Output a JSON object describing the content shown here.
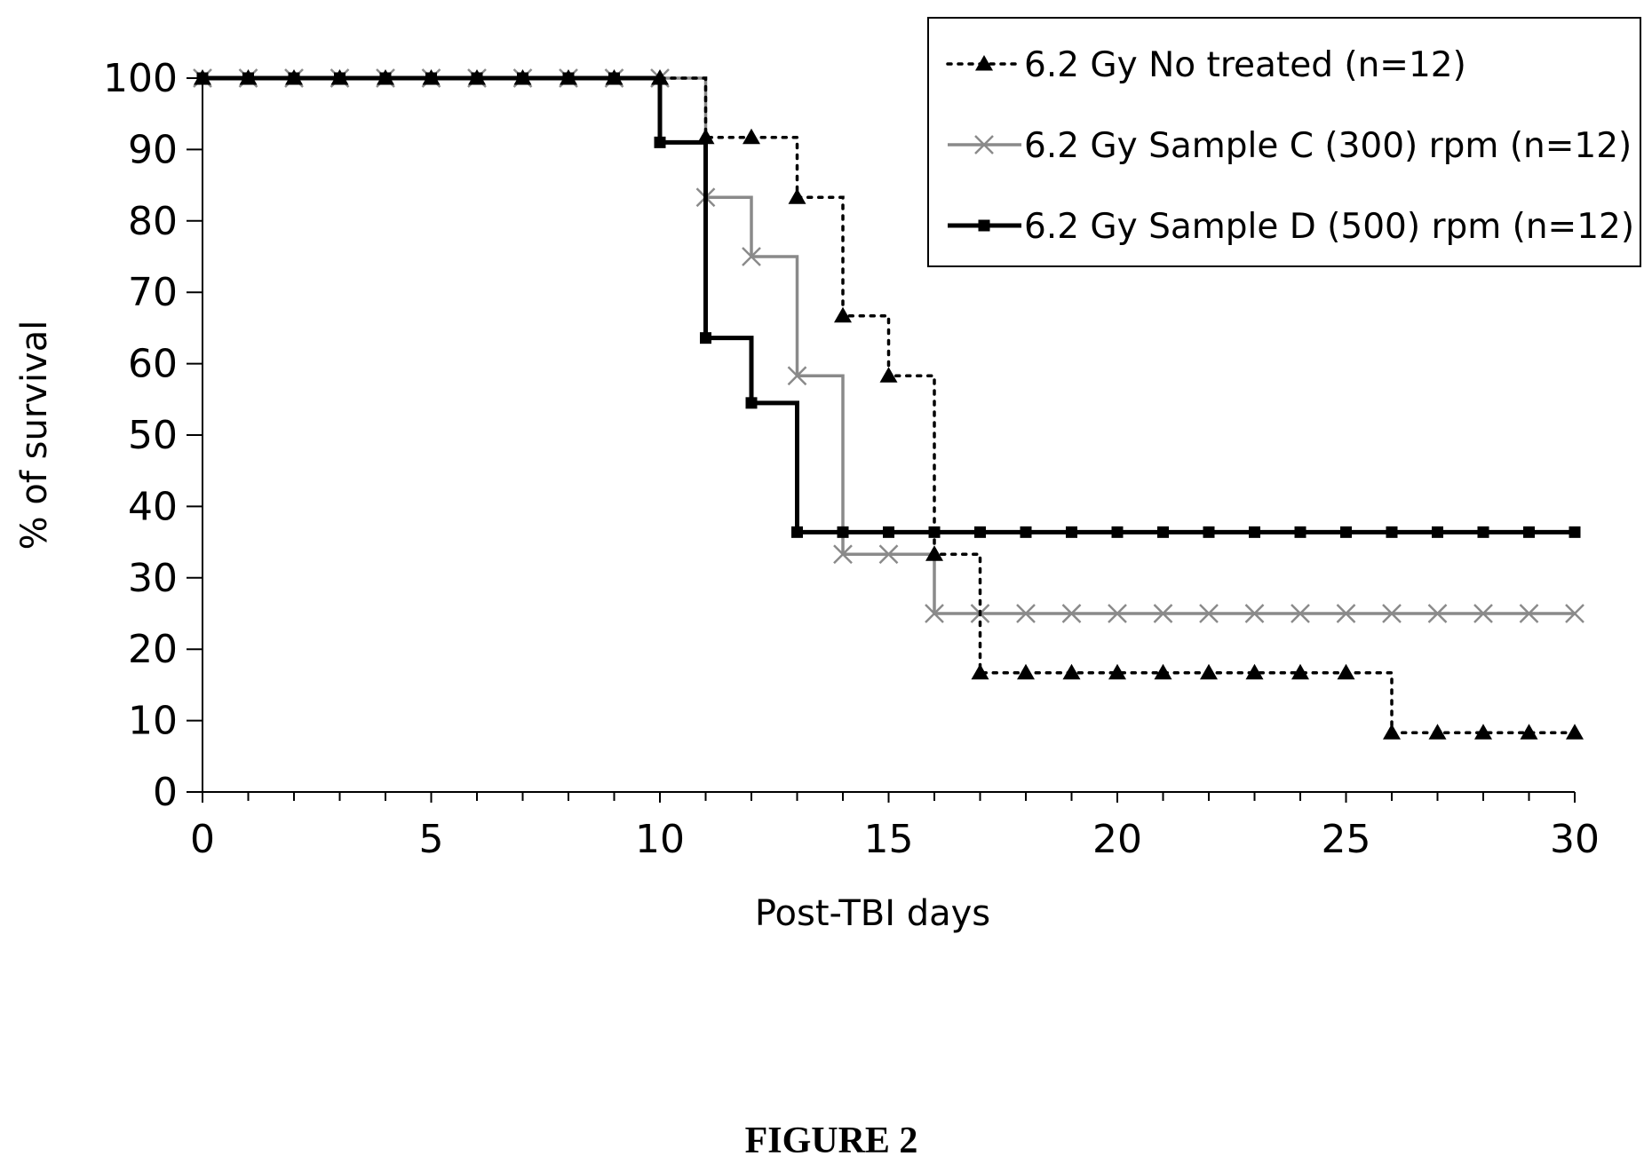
{
  "chart_data": {
    "type": "line",
    "step": true,
    "xlabel": "Post-TBI days",
    "ylabel": "% of survival",
    "xlim": [
      0,
      30
    ],
    "ylim": [
      0,
      100
    ],
    "xticks": [
      0,
      5,
      10,
      15,
      20,
      25,
      30
    ],
    "yticks": [
      0,
      10,
      20,
      30,
      40,
      50,
      60,
      70,
      80,
      90,
      100
    ],
    "grid": false,
    "legend": "top-right",
    "series": [
      {
        "name": "6.2 Gy No treated (n=12)",
        "color": "#000000",
        "line_style": "dotted",
        "marker": "triangle",
        "x": [
          0,
          1,
          2,
          3,
          4,
          5,
          6,
          7,
          8,
          9,
          10,
          11,
          12,
          13,
          14,
          15,
          16,
          17,
          18,
          19,
          20,
          21,
          22,
          23,
          24,
          25,
          26,
          27,
          28,
          29,
          30
        ],
        "y": [
          100,
          100,
          100,
          100,
          100,
          100,
          100,
          100,
          100,
          100,
          100,
          91.7,
          91.7,
          83.3,
          66.7,
          58.3,
          33.3,
          16.7,
          16.7,
          16.7,
          16.7,
          16.7,
          16.7,
          16.7,
          16.7,
          16.7,
          8.3,
          8.3,
          8.3,
          8.3,
          8.3
        ]
      },
      {
        "name": "6.2 Gy Sample C (300) rpm (n=12)",
        "color": "#8a8a8a",
        "line_style": "solid",
        "marker": "x",
        "x": [
          0,
          1,
          2,
          3,
          4,
          5,
          6,
          7,
          8,
          9,
          10,
          11,
          12,
          13,
          14,
          15,
          16,
          17,
          18,
          19,
          20,
          21,
          22,
          23,
          24,
          25,
          26,
          27,
          28,
          29,
          30
        ],
        "y": [
          100,
          100,
          100,
          100,
          100,
          100,
          100,
          100,
          100,
          100,
          100,
          83.3,
          75,
          58.3,
          33.3,
          33.3,
          25,
          25,
          25,
          25,
          25,
          25,
          25,
          25,
          25,
          25,
          25,
          25,
          25,
          25,
          25
        ]
      },
      {
        "name": "6.2 Gy Sample D (500) rpm (n=12)",
        "color": "#000000",
        "line_style": "solid-thick",
        "marker": "square",
        "x": [
          0,
          1,
          2,
          3,
          4,
          5,
          6,
          7,
          8,
          9,
          10,
          11,
          12,
          13,
          14,
          15,
          16,
          17,
          18,
          19,
          20,
          21,
          22,
          23,
          24,
          25,
          26,
          27,
          28,
          29,
          30
        ],
        "y": [
          100,
          100,
          100,
          100,
          100,
          100,
          100,
          100,
          100,
          100,
          91,
          63.6,
          54.5,
          36.4,
          36.4,
          36.4,
          36.4,
          36.4,
          36.4,
          36.4,
          36.4,
          36.4,
          36.4,
          36.4,
          36.4,
          36.4,
          36.4,
          36.4,
          36.4,
          36.4,
          36.4
        ]
      }
    ]
  },
  "caption": "FIGURE 2"
}
